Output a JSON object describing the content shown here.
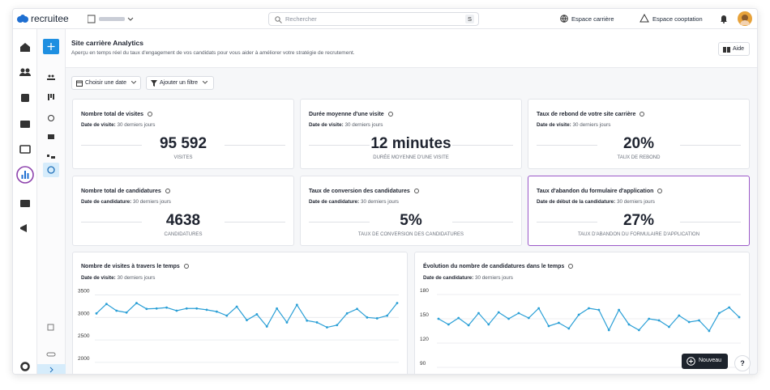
{
  "topbar": {
    "brand": "recruitee",
    "search_placeholder": "Rechercher",
    "search_shortcut": "S",
    "links": [
      "Espace carrière",
      "Espace cooptation"
    ]
  },
  "header": {
    "title": "Site carrière Analytics",
    "subtitle": "Aperçu en temps réel du taux d'engagement de vos candidats pour vous aider à améliorer votre stratégie de recrutement.",
    "help": "Aide"
  },
  "filters": [
    "Choisir une date",
    "Ajouter un filtre"
  ],
  "cards": [
    {
      "title": "Nombre total de visites",
      "date_label": "Date de visite:",
      "date_value": "30 derniers jours",
      "value": "95 592",
      "unit": "VISITES"
    },
    {
      "title": "Durée moyenne d'une visite",
      "date_label": "Date de visite:",
      "date_value": "30 derniers jours",
      "value": "12 minutes",
      "unit": "DURÉE MOYENNE D'UNE VISITE"
    },
    {
      "title": "Taux de rebond de votre site carrière",
      "date_label": "Date de visite:",
      "date_value": "30 derniers jours",
      "value": "20%",
      "unit": "TAUX DE REBOND"
    },
    {
      "title": "Nombre total de candidatures",
      "date_label": "Date de candidature:",
      "date_value": "30 derniers jours",
      "value": "4638",
      "unit": "CANDIDATURES"
    },
    {
      "title": "Taux de conversion des candidatures",
      "date_label": "Date de candidature:",
      "date_value": "30 derniers jours",
      "value": "5%",
      "unit": "TAUX DE CONVERSION DES CANDIDATURES"
    },
    {
      "title": "Taux d'abandon du formulaire d'application",
      "date_label": "Date de début de la candidature:",
      "date_value": "30 derniers jours",
      "value": "27%",
      "unit": "TAUX D'ABANDON DU FORMULAIRE D'APPLICATION"
    }
  ],
  "chart_data": [
    {
      "type": "line",
      "title": "Nombre de visites à travers le temps",
      "date_label": "Date de visite:",
      "date_value": "30 derniers jours",
      "categories": [
        null,
        null,
        null,
        null,
        null,
        null,
        null,
        null,
        null,
        null,
        null,
        null,
        null,
        null,
        null,
        null,
        null,
        null,
        null,
        null,
        null,
        null,
        null,
        null,
        null,
        null,
        null,
        null,
        null,
        null,
        null
      ],
      "values": [
        3090,
        3300,
        3150,
        3110,
        3320,
        3190,
        3200,
        3220,
        3150,
        3200,
        3200,
        3170,
        3130,
        3040,
        3240,
        2940,
        3070,
        2800,
        3200,
        2890,
        3280,
        2930,
        2890,
        2780,
        2830,
        3090,
        3190,
        3000,
        2980,
        3040,
        3320
      ],
      "color": "#2a9fd6",
      "ylim": [
        1800,
        3600
      ],
      "yticks": [
        2000,
        2500,
        3000,
        3500
      ],
      "grid": true
    },
    {
      "type": "line",
      "title": "Évolution du nombre de candidatures dans le temps",
      "date_label": "Date de candidature:",
      "date_value": "30 derniers jours",
      "categories": [
        null,
        null,
        null,
        null,
        null,
        null,
        null,
        null,
        null,
        null,
        null,
        null,
        null,
        null,
        null,
        null,
        null,
        null,
        null,
        null,
        null,
        null,
        null,
        null,
        null,
        null,
        null,
        null,
        null,
        null,
        null
      ],
      "values": [
        150,
        143,
        151,
        142,
        157,
        143,
        158,
        150,
        157,
        151,
        163,
        141,
        145,
        138,
        155,
        163,
        161,
        136,
        161,
        143,
        136,
        150,
        148,
        140,
        154,
        146,
        148,
        135,
        157,
        164,
        152
      ],
      "color": "#2a9fd6",
      "ylim": [
        85,
        185
      ],
      "yticks": [
        90,
        120,
        150,
        180
      ],
      "grid": true
    }
  ],
  "footer": {
    "new_button": "Nouveau",
    "help": "?"
  }
}
